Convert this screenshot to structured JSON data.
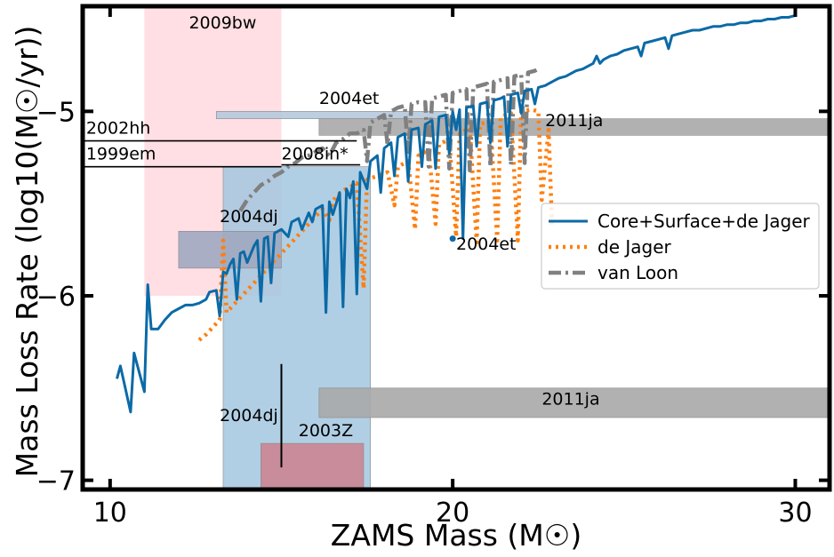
{
  "chart_data": {
    "type": "line",
    "title": "",
    "xlabel": "ZAMS Mass (M☉)",
    "ylabel": "Mass Loss Rate (log10(M☉/yr))",
    "xlim": [
      9.2,
      31.0
    ],
    "ylim": [
      -7.05,
      -4.43
    ],
    "xticks": [
      10,
      20,
      30
    ],
    "xtick_labels": [
      "10",
      "20",
      "30"
    ],
    "yticks": [
      -7,
      -6,
      -5
    ],
    "ytick_labels": [
      "−7",
      "−6",
      "−5"
    ],
    "grid": false,
    "legend_position": "center-right",
    "series": [
      {
        "name": "Core+Surface+de Jager",
        "style": "solid",
        "color": "#0b6aa6",
        "points": [
          [
            10.2,
            -6.45
          ],
          [
            10.3,
            -6.38
          ],
          [
            10.6,
            -6.63
          ],
          [
            10.7,
            -6.31
          ],
          [
            11.0,
            -6.52
          ],
          [
            11.1,
            -5.94
          ],
          [
            11.2,
            -6.18
          ],
          [
            11.4,
            -6.18
          ],
          [
            11.6,
            -6.13
          ],
          [
            11.8,
            -6.09
          ],
          [
            12.0,
            -6.07
          ],
          [
            12.2,
            -6.05
          ],
          [
            12.4,
            -6.05
          ],
          [
            12.6,
            -6.04
          ],
          [
            12.8,
            -6.02
          ],
          [
            12.9,
            -5.98
          ],
          [
            13.1,
            -5.97
          ],
          [
            13.2,
            -6.11
          ],
          [
            13.3,
            -5.87
          ],
          [
            13.4,
            -5.88
          ],
          [
            13.5,
            -5.83
          ],
          [
            13.6,
            -5.8
          ],
          [
            13.7,
            -6.02
          ],
          [
            13.8,
            -5.77
          ],
          [
            13.9,
            -5.76
          ],
          [
            14.0,
            -5.82
          ],
          [
            14.2,
            -5.73
          ],
          [
            14.3,
            -5.7
          ],
          [
            14.4,
            -6.03
          ],
          [
            14.5,
            -5.69
          ],
          [
            14.6,
            -5.68
          ],
          [
            14.7,
            -5.93
          ],
          [
            14.8,
            -5.66
          ],
          [
            15.0,
            -5.64
          ],
          [
            15.2,
            -5.68
          ],
          [
            15.3,
            -5.6
          ],
          [
            15.5,
            -5.58
          ],
          [
            15.6,
            -5.64
          ],
          [
            15.8,
            -5.55
          ],
          [
            15.9,
            -5.6
          ],
          [
            16.0,
            -5.53
          ],
          [
            16.2,
            -5.51
          ],
          [
            16.3,
            -6.09
          ],
          [
            16.4,
            -5.49
          ],
          [
            16.5,
            -5.56
          ],
          [
            16.7,
            -5.44
          ],
          [
            16.8,
            -6.06
          ],
          [
            16.9,
            -5.42
          ],
          [
            17.0,
            -5.47
          ],
          [
            17.1,
            -5.38
          ],
          [
            17.2,
            -5.99
          ],
          [
            17.3,
            -5.33
          ],
          [
            17.5,
            -5.42
          ],
          [
            17.6,
            -5.27
          ],
          [
            17.8,
            -5.24
          ],
          [
            17.9,
            -5.44
          ],
          [
            18.0,
            -5.2
          ],
          [
            18.2,
            -5.17
          ],
          [
            18.3,
            -5.35
          ],
          [
            18.4,
            -5.14
          ],
          [
            18.6,
            -5.12
          ],
          [
            18.7,
            -5.38
          ],
          [
            18.8,
            -5.1
          ],
          [
            19.0,
            -5.09
          ],
          [
            19.1,
            -5.3
          ],
          [
            19.2,
            -5.07
          ],
          [
            19.4,
            -5.05
          ],
          [
            19.5,
            -5.31
          ],
          [
            19.6,
            -5.03
          ],
          [
            19.8,
            -5.02
          ],
          [
            19.9,
            -5.23
          ],
          [
            20.0,
            -5.0
          ],
          [
            20.1,
            -5.1
          ],
          [
            20.2,
            -4.99
          ],
          [
            20.3,
            -5.69
          ],
          [
            20.4,
            -4.98
          ],
          [
            20.6,
            -4.97
          ],
          [
            20.7,
            -5.19
          ],
          [
            20.8,
            -4.96
          ],
          [
            21.0,
            -4.95
          ],
          [
            21.1,
            -5.17
          ],
          [
            21.2,
            -4.94
          ],
          [
            21.4,
            -4.93
          ],
          [
            21.5,
            -4.92
          ],
          [
            21.6,
            -5.19
          ],
          [
            21.7,
            -4.91
          ],
          [
            21.9,
            -4.9
          ],
          [
            22.0,
            -5.01
          ],
          [
            22.1,
            -4.89
          ],
          [
            22.3,
            -4.88
          ],
          [
            22.4,
            -4.96
          ],
          [
            22.5,
            -4.87
          ],
          [
            22.7,
            -4.86
          ],
          [
            22.8,
            -4.85
          ],
          [
            23.0,
            -4.83
          ],
          [
            23.1,
            -4.82
          ],
          [
            23.3,
            -4.81
          ],
          [
            23.4,
            -4.8
          ],
          [
            23.6,
            -4.78
          ],
          [
            23.8,
            -4.77
          ],
          [
            24.0,
            -4.75
          ],
          [
            24.1,
            -4.74
          ],
          [
            24.2,
            -4.7
          ],
          [
            24.3,
            -4.74
          ],
          [
            24.4,
            -4.72
          ],
          [
            24.6,
            -4.7
          ],
          [
            24.8,
            -4.69
          ],
          [
            25.0,
            -4.67
          ],
          [
            25.2,
            -4.66
          ],
          [
            25.4,
            -4.65
          ],
          [
            25.5,
            -4.7
          ],
          [
            25.6,
            -4.63
          ],
          [
            25.8,
            -4.62
          ],
          [
            26.0,
            -4.61
          ],
          [
            26.2,
            -4.6
          ],
          [
            26.3,
            -4.66
          ],
          [
            26.4,
            -4.59
          ],
          [
            26.6,
            -4.58
          ],
          [
            26.8,
            -4.57
          ],
          [
            27.0,
            -4.56
          ],
          [
            27.2,
            -4.56
          ],
          [
            27.4,
            -4.55
          ],
          [
            27.6,
            -4.54
          ],
          [
            27.8,
            -4.54
          ],
          [
            28.0,
            -4.53
          ],
          [
            28.2,
            -4.53
          ],
          [
            28.4,
            -4.52
          ],
          [
            28.6,
            -4.52
          ],
          [
            28.8,
            -4.51
          ],
          [
            29.0,
            -4.51
          ],
          [
            29.2,
            -4.5
          ],
          [
            29.4,
            -4.5
          ],
          [
            29.6,
            -4.49
          ],
          [
            29.8,
            -4.49
          ],
          [
            30.0,
            -4.48
          ]
        ]
      },
      {
        "name": "de Jager",
        "style": "dotted",
        "color": "#ff7f0e",
        "points": [
          [
            12.6,
            -6.24
          ],
          [
            12.8,
            -6.21
          ],
          [
            13.0,
            -6.17
          ],
          [
            13.2,
            -6.13
          ],
          [
            13.3,
            -5.7
          ],
          [
            13.4,
            -6.09
          ],
          [
            13.6,
            -6.05
          ],
          [
            13.8,
            -6.01
          ],
          [
            14.0,
            -5.97
          ],
          [
            14.2,
            -5.93
          ],
          [
            14.4,
            -5.89
          ],
          [
            14.6,
            -5.85
          ],
          [
            14.8,
            -5.81
          ],
          [
            15.0,
            -5.77
          ],
          [
            15.2,
            -5.73
          ],
          [
            15.4,
            -5.69
          ],
          [
            15.6,
            -5.65
          ],
          [
            15.8,
            -5.61
          ],
          [
            16.0,
            -5.57
          ],
          [
            16.2,
            -5.53
          ],
          [
            16.4,
            -5.59
          ],
          [
            16.5,
            -5.49
          ],
          [
            16.6,
            -5.46
          ],
          [
            16.8,
            -5.43
          ],
          [
            17.0,
            -5.41
          ],
          [
            17.2,
            -5.39
          ],
          [
            17.4,
            -5.96
          ],
          [
            17.5,
            -5.37
          ],
          [
            17.8,
            -5.35
          ],
          [
            18.1,
            -5.33
          ],
          [
            18.3,
            -5.51
          ],
          [
            18.4,
            -5.3
          ],
          [
            18.7,
            -5.27
          ],
          [
            18.9,
            -5.64
          ],
          [
            19.0,
            -5.24
          ],
          [
            19.3,
            -5.21
          ],
          [
            19.5,
            -5.61
          ],
          [
            19.6,
            -5.18
          ],
          [
            19.9,
            -5.15
          ],
          [
            20.1,
            -5.68
          ],
          [
            20.2,
            -5.12
          ],
          [
            20.5,
            -5.09
          ],
          [
            20.7,
            -5.71
          ],
          [
            20.8,
            -5.07
          ],
          [
            21.1,
            -5.05
          ],
          [
            21.3,
            -5.7
          ],
          [
            21.4,
            -5.03
          ],
          [
            21.7,
            -5.01
          ],
          [
            21.9,
            -5.7
          ],
          [
            22.0,
            -5.0
          ],
          [
            22.3,
            -4.99
          ],
          [
            22.5,
            -5.0
          ],
          [
            22.6,
            -5.48
          ],
          [
            22.8,
            -5.1
          ],
          [
            22.9,
            -5.62
          ]
        ]
      },
      {
        "name": "van Loon",
        "style": "dashdot",
        "color": "#808080",
        "points": [
          [
            13.8,
            -5.54
          ],
          [
            14.0,
            -5.48
          ],
          [
            14.2,
            -5.44
          ],
          [
            14.4,
            -5.4
          ],
          [
            14.6,
            -5.38
          ],
          [
            14.8,
            -5.35
          ],
          [
            15.0,
            -5.33
          ],
          [
            15.2,
            -5.3
          ],
          [
            15.4,
            -5.28
          ],
          [
            15.6,
            -5.25
          ],
          [
            15.8,
            -5.24
          ],
          [
            16.0,
            -5.22
          ],
          [
            16.2,
            -5.2
          ],
          [
            16.4,
            -5.24
          ],
          [
            16.6,
            -5.17
          ],
          [
            16.8,
            -5.15
          ],
          [
            17.0,
            -5.12
          ],
          [
            17.2,
            -5.12
          ],
          [
            17.4,
            -5.1
          ],
          [
            17.5,
            -5.27
          ],
          [
            17.6,
            -5.06
          ],
          [
            17.8,
            -5.04
          ],
          [
            18.0,
            -5.02
          ],
          [
            18.1,
            -5.18
          ],
          [
            18.2,
            -5.0
          ],
          [
            18.4,
            -4.98
          ],
          [
            18.6,
            -4.97
          ],
          [
            18.7,
            -5.22
          ],
          [
            18.8,
            -4.96
          ],
          [
            19.0,
            -4.95
          ],
          [
            19.2,
            -4.95
          ],
          [
            19.3,
            -5.3
          ],
          [
            19.4,
            -4.93
          ],
          [
            19.6,
            -4.92
          ],
          [
            19.8,
            -4.91
          ],
          [
            19.9,
            -5.31
          ],
          [
            20.0,
            -4.9
          ],
          [
            20.2,
            -4.89
          ],
          [
            20.4,
            -4.88
          ],
          [
            20.5,
            -5.32
          ],
          [
            20.6,
            -4.87
          ],
          [
            20.8,
            -4.86
          ],
          [
            21.0,
            -4.85
          ],
          [
            21.1,
            -5.3
          ],
          [
            21.2,
            -4.84
          ],
          [
            21.4,
            -4.83
          ],
          [
            21.6,
            -4.82
          ],
          [
            21.7,
            -5.29
          ],
          [
            21.8,
            -4.81
          ],
          [
            22.0,
            -4.8
          ],
          [
            22.1,
            -5.28
          ],
          [
            22.2,
            -4.79
          ],
          [
            22.4,
            -4.78
          ],
          [
            22.5,
            -4.77
          ]
        ]
      }
    ],
    "regions": [
      {
        "label": "2009bw",
        "x": [
          11.0,
          15.0
        ],
        "y": [
          -6.0,
          -4.43
        ],
        "color": "#ffdbe0",
        "label_at": [
          12.3,
          -4.55
        ]
      },
      {
        "label": "2004dj",
        "x": [
          13.3,
          17.6
        ],
        "y": [
          -7.05,
          -5.3
        ],
        "color": "#a3c7df",
        "label_at": null
      },
      {
        "label": "2004dj",
        "x": [
          12.0,
          15.0
        ],
        "y": [
          -5.85,
          -5.65
        ],
        "color": "#a0a8c0",
        "label_at": [
          13.2,
          -5.6
        ]
      },
      {
        "label": "2004et",
        "x": [
          13.1,
          19.8
        ],
        "y": [
          -5.04,
          -5.0
        ],
        "color": "#b5c9dc",
        "label_at": [
          16.1,
          -4.96
        ]
      },
      {
        "label": "2011ja",
        "x": [
          16.1,
          31.0
        ],
        "y": [
          -5.13,
          -5.04
        ],
        "color": "#a8a8a8",
        "label_at": [
          22.7,
          -5.08
        ]
      },
      {
        "label": "2011ja",
        "x": [
          16.1,
          31.0
        ],
        "y": [
          -6.66,
          -6.5
        ],
        "color": "#a8a8a8",
        "label_at": [
          22.6,
          -6.59
        ]
      },
      {
        "label": "2003Z",
        "x": [
          14.4,
          17.4
        ],
        "y": [
          -7.05,
          -6.8
        ],
        "color": "#cb8492",
        "label_at": [
          15.5,
          -6.76
        ]
      }
    ],
    "hlines": [
      {
        "label": "2002hh",
        "x": [
          9.2,
          17.2
        ],
        "y": -5.16,
        "label_at": [
          9.3,
          -5.12
        ]
      },
      {
        "label": "1999em",
        "x": [
          9.2,
          15.0
        ],
        "y": -5.3,
        "label_at": [
          9.3,
          -5.26
        ]
      },
      {
        "label": "2008in*",
        "x": [
          15.0,
          17.3
        ],
        "y": -5.29,
        "label_at": [
          15.0,
          -5.26
        ]
      }
    ],
    "vlines": [
      {
        "label": "2004dj",
        "x": 15.0,
        "y": [
          -6.93,
          -6.37
        ],
        "label_at": [
          13.2,
          -6.68
        ]
      }
    ],
    "points": [
      {
        "label": "2004et",
        "x": 20.0,
        "y": -5.69,
        "label_at": [
          20.1,
          -5.75
        ]
      }
    ]
  }
}
